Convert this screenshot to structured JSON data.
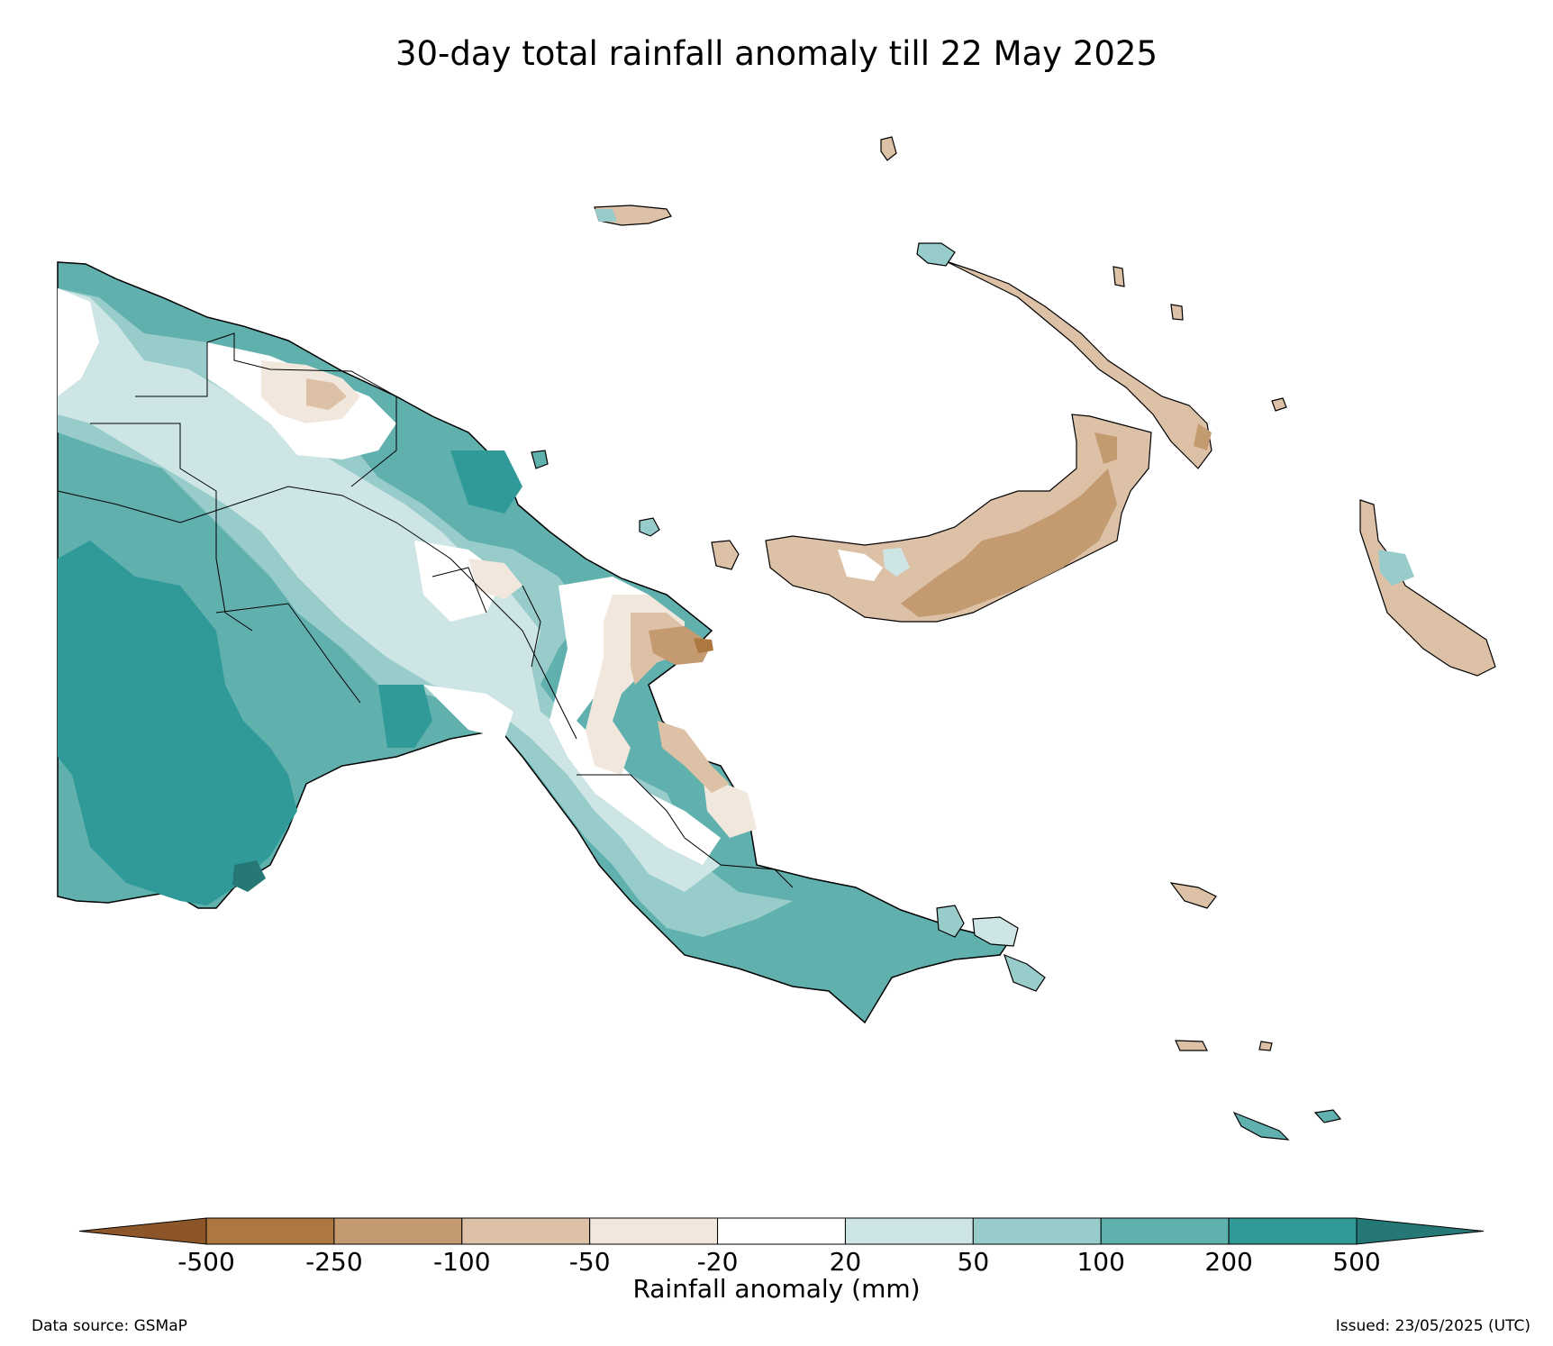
{
  "title": "30-day total rainfall anomaly till 22 May 2025",
  "colorbar": {
    "label": "Rainfall anomaly (mm)",
    "ticks": [
      "-500",
      "-250",
      "-100",
      "-50",
      "-20",
      "20",
      "50",
      "100",
      "200",
      "500"
    ],
    "colors": [
      "#8c5628",
      "#ad7740",
      "#c49a70",
      "#dcc1a6",
      "#f1e7dd",
      "#ffffff",
      "#cde6e5",
      "#98cccb",
      "#60b0ae",
      "#2f9a97",
      "#257876"
    ],
    "extend": "both"
  },
  "footer": {
    "data_source": "Data source: GSMaP",
    "issued": "Issued: 23/05/2025 (UTC)"
  },
  "map": {
    "region": "Papua New Guinea",
    "outline_color": "#000000"
  }
}
